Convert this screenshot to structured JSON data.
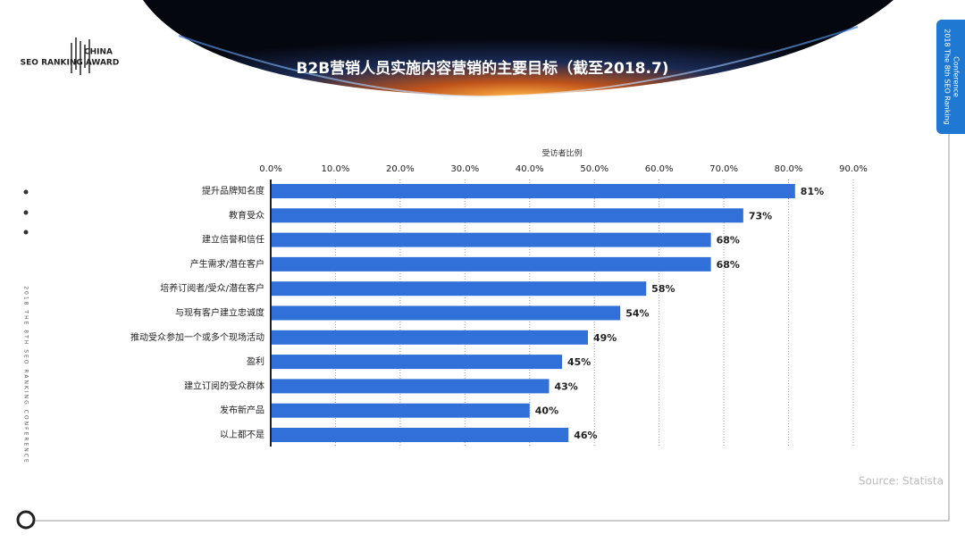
{
  "slide": {
    "logo_top": "CHINA",
    "logo_bottom": "SEO RANKING AWARD",
    "side_tab": [
      "2018 The 8th SEO Ranking",
      "Conference"
    ],
    "side_text": "2018 THE 8TH SEO RANKING CONFERENCE",
    "source": "Source: Statista"
  },
  "chart_data": {
    "type": "bar",
    "orientation": "horizontal",
    "title": "B2B营销人员实施内容营销的主要目标（截至2018.7)",
    "x_label": "受访者比例",
    "categories": [
      "提升品牌知名度",
      "教育受众",
      "建立信誉和信任",
      "产生需求/潜在客户",
      "培养订阅者/受众/潜在客户",
      "与现有客户建立忠诚度",
      "推动受众参加一个或多个现场活动",
      "盈利",
      "建立订阅的受众群体",
      "发布新产品",
      "以上都不是"
    ],
    "values": [
      81,
      73,
      68,
      68,
      58,
      54,
      49,
      45,
      43,
      40,
      46
    ],
    "value_labels": [
      "81%",
      "73%",
      "68%",
      "68%",
      "58%",
      "54%",
      "49%",
      "45%",
      "43%",
      "40%",
      "46%"
    ],
    "color": "#3070d8",
    "xlim": [
      0,
      90
    ],
    "xticks": [
      {
        "value": 0,
        "label": "0.0%"
      },
      {
        "value": 10,
        "label": "10.0%"
      },
      {
        "value": 20,
        "label": "20.0%"
      },
      {
        "value": 30,
        "label": "30.0%"
      },
      {
        "value": 40,
        "label": "40.0%"
      },
      {
        "value": 50,
        "label": "50.0%"
      },
      {
        "value": 60,
        "label": "60.0%"
      },
      {
        "value": 70,
        "label": "70.0%"
      },
      {
        "value": 80,
        "label": "80.0%"
      },
      {
        "value": 90,
        "label": "90.0%"
      }
    ],
    "grid": true
  }
}
